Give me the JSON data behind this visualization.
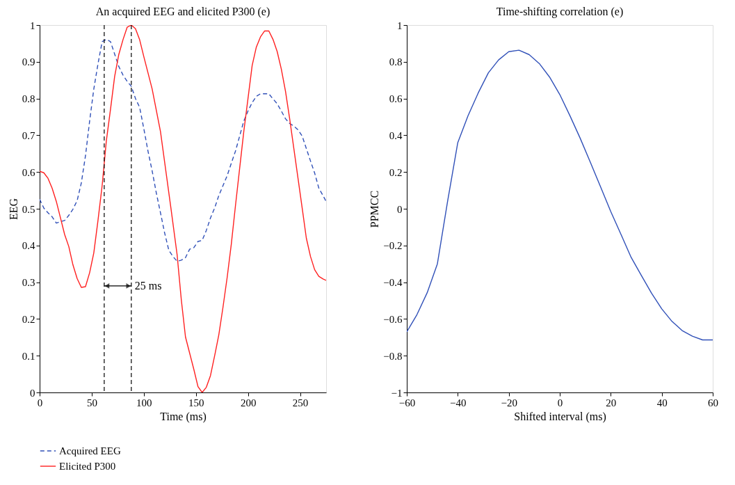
{
  "chart_data": [
    {
      "type": "line",
      "title": "An acquired EEG and elicited P300 (e)",
      "xlabel": "Time (ms)",
      "ylabel": "EEG",
      "xlim": [
        0,
        275
      ],
      "xticks": [
        0,
        50,
        100,
        150,
        200,
        250
      ],
      "ylim": [
        0,
        1
      ],
      "yticks": [
        0,
        0.1,
        0.2,
        0.3,
        0.4,
        0.5,
        0.6,
        0.7,
        0.8,
        0.9,
        1
      ],
      "grid": false,
      "legend": "bottom left",
      "series": [
        {
          "name": "Acquired EEG",
          "color": "#3050b8",
          "line_style": "dashed",
          "x": [
            0,
            4,
            8,
            12,
            16,
            20,
            24,
            28,
            32,
            36,
            40,
            44,
            48,
            52,
            56,
            60,
            64,
            68,
            72,
            76,
            80,
            84,
            88,
            92,
            96,
            100,
            104,
            108,
            112,
            116,
            120,
            124,
            128,
            132,
            136,
            140,
            144,
            148,
            152,
            156,
            160,
            164,
            168,
            172,
            176,
            180,
            184,
            188,
            192,
            196,
            200,
            204,
            208,
            212,
            216,
            220,
            224,
            228,
            232,
            236,
            240,
            244,
            248,
            252,
            256,
            260,
            264,
            268,
            272,
            275
          ],
          "values": [
            0.526,
            0.502,
            0.489,
            0.478,
            0.461,
            0.465,
            0.468,
            0.482,
            0.499,
            0.522,
            0.57,
            0.644,
            0.739,
            0.826,
            0.894,
            0.955,
            0.961,
            0.955,
            0.921,
            0.887,
            0.864,
            0.847,
            0.833,
            0.8,
            0.776,
            0.718,
            0.657,
            0.603,
            0.543,
            0.489,
            0.434,
            0.387,
            0.37,
            0.357,
            0.36,
            0.367,
            0.39,
            0.394,
            0.411,
            0.414,
            0.441,
            0.475,
            0.502,
            0.536,
            0.563,
            0.59,
            0.624,
            0.657,
            0.698,
            0.739,
            0.766,
            0.789,
            0.806,
            0.813,
            0.813,
            0.813,
            0.799,
            0.786,
            0.766,
            0.745,
            0.732,
            0.725,
            0.715,
            0.698,
            0.664,
            0.63,
            0.597,
            0.556,
            0.536,
            0.52
          ]
        },
        {
          "name": "Elicited P300",
          "color": "#ff2020",
          "line_style": "solid",
          "x": [
            0,
            4,
            8,
            12,
            16,
            20,
            24,
            28,
            32,
            36,
            40,
            44,
            48,
            52,
            56,
            60,
            64,
            68,
            72,
            76,
            80,
            84,
            88,
            92,
            96,
            100,
            104,
            108,
            116,
            126,
            132,
            136,
            140,
            144,
            148,
            152,
            156,
            160,
            164,
            168,
            172,
            176,
            180,
            184,
            188,
            192,
            196,
            200,
            204,
            208,
            212,
            216,
            220,
            224,
            228,
            232,
            236,
            240,
            244,
            248,
            252,
            256,
            260,
            264,
            268,
            272,
            275
          ],
          "values": [
            0.602,
            0.598,
            0.583,
            0.556,
            0.52,
            0.475,
            0.43,
            0.397,
            0.347,
            0.31,
            0.286,
            0.288,
            0.326,
            0.38,
            0.468,
            0.563,
            0.684,
            0.77,
            0.86,
            0.92,
            0.96,
            0.994,
            1.0,
            0.99,
            0.96,
            0.914,
            0.87,
            0.826,
            0.71,
            0.502,
            0.374,
            0.252,
            0.151,
            0.107,
            0.063,
            0.016,
            0,
            0.014,
            0.046,
            0.1,
            0.157,
            0.232,
            0.313,
            0.404,
            0.509,
            0.61,
            0.711,
            0.8,
            0.89,
            0.94,
            0.968,
            0.984,
            0.984,
            0.961,
            0.928,
            0.88,
            0.82,
            0.745,
            0.664,
            0.583,
            0.502,
            0.42,
            0.37,
            0.334,
            0.316,
            0.309,
            0.305
          ]
        }
      ],
      "ref_lines": [
        {
          "axis": "x",
          "value": 62,
          "color": "#000000",
          "line_style": "dashed"
        },
        {
          "axis": "x",
          "value": 88,
          "color": "#000000",
          "line_style": "dashed"
        }
      ],
      "annotations": [
        {
          "text": "25 ms",
          "x": 90,
          "y": 0.29
        }
      ]
    },
    {
      "type": "line",
      "title": "Time-shifting correlation (e)",
      "xlabel": "Shifted interval (ms)",
      "ylabel": "PPMCC",
      "xlim": [
        -60,
        60
      ],
      "xticks": [
        -60,
        -40,
        -20,
        0,
        20,
        40,
        60
      ],
      "ylim": [
        -1,
        1
      ],
      "yticks": [
        -1,
        -0.8,
        -0.6,
        -0.4,
        -0.2,
        0,
        0.2,
        0.4,
        0.6,
        0.8,
        1
      ],
      "grid": false,
      "series": [
        {
          "color": "#3050b8",
          "line_style": "solid",
          "x": [
            -60,
            -56,
            -52,
            -48,
            -44,
            -40,
            -36,
            -32,
            -28,
            -24,
            -20,
            -16,
            -12,
            -8,
            -4,
            0,
            4,
            8,
            12,
            16,
            20,
            24,
            28,
            32,
            36,
            40,
            44,
            48,
            52,
            56,
            60
          ],
          "values": [
            -0.67,
            -0.576,
            -0.457,
            -0.3,
            0.04,
            0.36,
            0.506,
            0.63,
            0.74,
            0.81,
            0.855,
            0.863,
            0.839,
            0.79,
            0.717,
            0.622,
            0.506,
            0.384,
            0.253,
            0.119,
            -0.015,
            -0.139,
            -0.265,
            -0.363,
            -0.46,
            -0.545,
            -0.613,
            -0.663,
            -0.694,
            -0.714,
            -0.714
          ]
        }
      ]
    }
  ]
}
